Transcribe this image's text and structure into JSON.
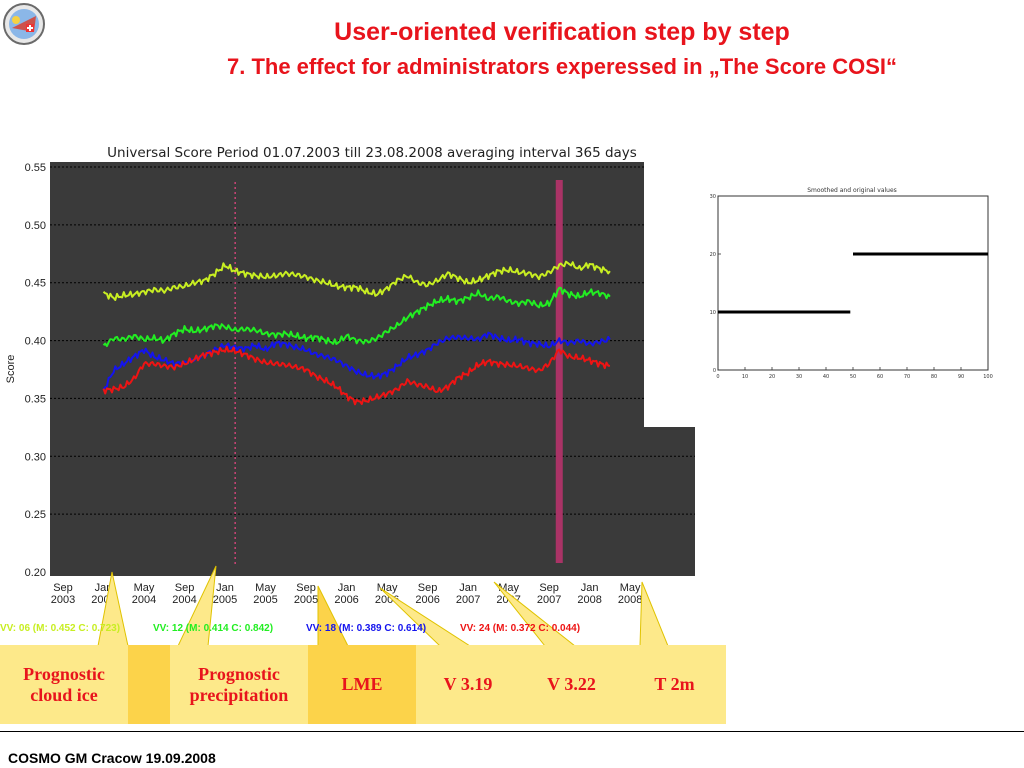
{
  "header": {
    "title": "User-oriented verification step by step",
    "subtitle": "7. The  effect for administrators experessed in „The Score COSI“"
  },
  "footer": {
    "text": "COSMO GM Cracow 19.09.2008"
  },
  "chart_data": [
    {
      "type": "line",
      "title": "Universal Score Period 01.07.2003 till 23.08.2008 averaging interval 365 days",
      "ylabel": "Score",
      "xlabel": "",
      "ylim": [
        0.2,
        0.55
      ],
      "yticks": [
        "0.20",
        "0.25",
        "0.30",
        "0.35",
        "0.40",
        "0.45",
        "0.50",
        "0.55"
      ],
      "xticks": [
        {
          "month": "Sep",
          "year": "2003",
          "t": 2
        },
        {
          "month": "Jan",
          "year": "2004",
          "t": 6
        },
        {
          "month": "May",
          "year": "2004",
          "t": 10
        },
        {
          "month": "Sep",
          "year": "2004",
          "t": 14
        },
        {
          "month": "Jan",
          "year": "2005",
          "t": 18
        },
        {
          "month": "May",
          "year": "2005",
          "t": 22
        },
        {
          "month": "Sep",
          "year": "2005",
          "t": 26
        },
        {
          "month": "Jan",
          "year": "2006",
          "t": 30
        },
        {
          "month": "May",
          "year": "2006",
          "t": 34
        },
        {
          "month": "Sep",
          "year": "2006",
          "t": 38
        },
        {
          "month": "Jan",
          "year": "2007",
          "t": 42
        },
        {
          "month": "May",
          "year": "2007",
          "t": 46
        },
        {
          "month": "Sep",
          "year": "2007",
          "t": 50
        },
        {
          "month": "Jan",
          "year": "2008",
          "t": 54
        },
        {
          "month": "May",
          "year": "2008",
          "t": 58
        }
      ],
      "x_t": [
        6,
        7,
        8,
        9,
        10,
        11,
        12,
        13,
        14,
        15,
        16,
        17,
        18,
        19,
        20,
        21,
        22,
        23,
        24,
        25,
        26,
        27,
        28,
        29,
        30,
        31,
        32,
        33,
        34,
        35,
        36,
        37,
        38,
        39,
        40,
        41,
        42,
        43,
        44,
        45,
        46,
        47,
        48,
        49,
        50,
        51,
        52,
        53,
        54,
        55,
        56
      ],
      "series": [
        {
          "label": "VV: 06 (M:  0.452 C:  0.723)",
          "color": "#c8ee22",
          "values": [
            0.441,
            0.437,
            0.439,
            0.44,
            0.442,
            0.444,
            0.443,
            0.446,
            0.447,
            0.45,
            0.452,
            0.458,
            0.465,
            0.46,
            0.458,
            0.456,
            0.455,
            0.456,
            0.458,
            0.457,
            0.455,
            0.452,
            0.45,
            0.447,
            0.446,
            0.446,
            0.442,
            0.44,
            0.445,
            0.452,
            0.456,
            0.45,
            0.448,
            0.452,
            0.458,
            0.454,
            0.45,
            0.452,
            0.456,
            0.46,
            0.461,
            0.459,
            0.458,
            0.455,
            0.459,
            0.465,
            0.467,
            0.462,
            0.466,
            0.462,
            0.46
          ]
        },
        {
          "label": "VV: 12 (M:  0.414 C:  0.842)",
          "color": "#22ee22",
          "values": [
            0.395,
            0.402,
            0.401,
            0.404,
            0.401,
            0.402,
            0.4,
            0.406,
            0.41,
            0.408,
            0.41,
            0.413,
            0.412,
            0.409,
            0.41,
            0.409,
            0.406,
            0.405,
            0.406,
            0.404,
            0.402,
            0.403,
            0.4,
            0.398,
            0.404,
            0.4,
            0.399,
            0.402,
            0.408,
            0.413,
            0.42,
            0.425,
            0.43,
            0.434,
            0.436,
            0.434,
            0.437,
            0.441,
            0.436,
            0.438,
            0.434,
            0.432,
            0.434,
            0.43,
            0.432,
            0.445,
            0.44,
            0.438,
            0.442,
            0.441,
            0.438
          ]
        },
        {
          "label": "VV: 18 (M:  0.389 C:  0.614)",
          "color": "#1414ee",
          "values": [
            0.357,
            0.374,
            0.38,
            0.386,
            0.392,
            0.386,
            0.383,
            0.38,
            0.381,
            0.384,
            0.388,
            0.392,
            0.396,
            0.394,
            0.393,
            0.396,
            0.392,
            0.398,
            0.397,
            0.394,
            0.392,
            0.388,
            0.386,
            0.383,
            0.378,
            0.373,
            0.37,
            0.369,
            0.372,
            0.378,
            0.385,
            0.388,
            0.392,
            0.398,
            0.402,
            0.403,
            0.402,
            0.401,
            0.406,
            0.402,
            0.4,
            0.401,
            0.398,
            0.397,
            0.395,
            0.4,
            0.398,
            0.4,
            0.397,
            0.399,
            0.401
          ]
        },
        {
          "label": "VV: 24 (M:  0.372 C:  0.044)",
          "color": "#ee1414",
          "values": [
            0.357,
            0.358,
            0.36,
            0.367,
            0.38,
            0.38,
            0.378,
            0.377,
            0.38,
            0.384,
            0.388,
            0.39,
            0.392,
            0.391,
            0.388,
            0.384,
            0.381,
            0.38,
            0.379,
            0.377,
            0.375,
            0.369,
            0.365,
            0.36,
            0.352,
            0.347,
            0.348,
            0.351,
            0.354,
            0.358,
            0.365,
            0.362,
            0.36,
            0.356,
            0.36,
            0.368,
            0.372,
            0.379,
            0.382,
            0.38,
            0.379,
            0.378,
            0.376,
            0.374,
            0.38,
            0.392,
            0.386,
            0.385,
            0.383,
            0.38,
            0.378
          ]
        }
      ],
      "markers": [
        {
          "t": 19,
          "style": "dotted",
          "color": "#cc4477"
        },
        {
          "t": 51,
          "style": "solid",
          "color": "#aa3366"
        }
      ],
      "grid": true,
      "background": "#3a3a3a"
    },
    {
      "type": "line",
      "title": "Smoothed and original values",
      "xlim": [
        0,
        100
      ],
      "ylim": [
        0,
        30
      ],
      "xticks": [
        "0",
        "10",
        "20",
        "30",
        "40",
        "50",
        "60",
        "70",
        "80",
        "90",
        "100"
      ],
      "yticks": [
        "0",
        "10",
        "20",
        "30"
      ],
      "segments": [
        {
          "x": [
            0,
            49
          ],
          "y": [
            10,
            10
          ]
        },
        {
          "x": [
            50,
            100
          ],
          "y": [
            20,
            20
          ]
        }
      ]
    }
  ],
  "boxes": [
    {
      "label": "Prognostic cloud ice",
      "bg": "#fde98a"
    },
    {
      "label": "",
      "bg": "#fcd34a"
    },
    {
      "label": "Prognostic precipitation",
      "bg": "#fde98a"
    },
    {
      "label": "LME",
      "bg": "#fcd34a"
    },
    {
      "label": "V 3.19",
      "bg": "#fde98a"
    },
    {
      "label": "V 3.22",
      "bg": "#fde98a"
    },
    {
      "label": "T 2m",
      "bg": "#fde98a"
    }
  ]
}
